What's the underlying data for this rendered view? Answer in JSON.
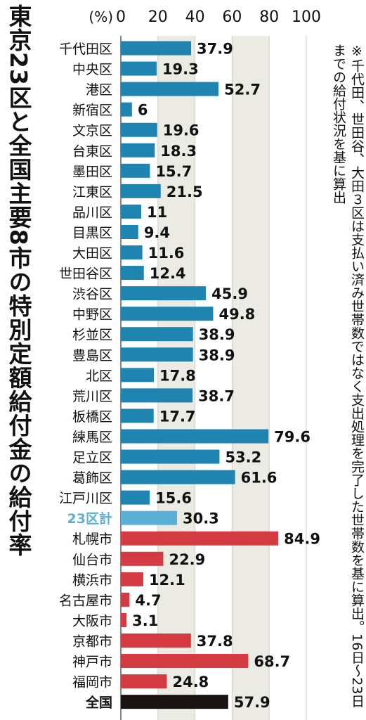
{
  "title": "東京23区と全国主要8市の特別定額給付金の給付率",
  "note": "※千代田、世田谷、大田３区は支払い済み世帯数ではなく支出処理を完了した世帯数を基に算出。16日～23日までの給付状況を基に算出",
  "colors": {
    "ward": "#1f85b0",
    "ward_total": "#5bb0d6",
    "city": "#d33a42",
    "national": "#1a1414",
    "band": "#ebebe4"
  },
  "chart_data": {
    "type": "bar",
    "orientation": "horizontal",
    "unit_label": "(%)",
    "xlim": [
      0,
      100
    ],
    "xticks": [
      "0",
      "20",
      "40",
      "60",
      "80",
      "100"
    ],
    "categories": [
      "千代田区",
      "中央区",
      "港区",
      "新宿区",
      "文京区",
      "台東区",
      "墨田区",
      "江東区",
      "品川区",
      "目黒区",
      "大田区",
      "世田谷区",
      "渋谷区",
      "中野区",
      "杉並区",
      "豊島区",
      "北区",
      "荒川区",
      "板橋区",
      "練馬区",
      "足立区",
      "葛飾区",
      "江戸川区",
      "23区計",
      "札幌市",
      "仙台市",
      "横浜市",
      "名古屋市",
      "大阪市",
      "京都市",
      "神戸市",
      "福岡市",
      "全国"
    ],
    "values": [
      37.9,
      19.3,
      52.7,
      6,
      19.6,
      18.3,
      15.7,
      21.5,
      11,
      9.4,
      11.6,
      12.4,
      45.9,
      49.8,
      38.9,
      38.9,
      17.8,
      38.7,
      17.7,
      79.6,
      53.2,
      61.6,
      15.6,
      30.3,
      84.9,
      22.9,
      12.1,
      4.7,
      3.1,
      37.8,
      68.7,
      24.8,
      57.9
    ],
    "labels": [
      "37.9",
      "19.3",
      "52.7",
      "6",
      "19.6",
      "18.3",
      "15.7",
      "21.5",
      "11",
      "9.4",
      "11.6",
      "12.4",
      "45.9",
      "49.8",
      "38.9",
      "38.9",
      "17.8",
      "38.7",
      "17.7",
      "79.6",
      "53.2",
      "61.6",
      "15.6",
      "30.3",
      "84.9",
      "22.9",
      "12.1",
      "4.7",
      "3.1",
      "37.8",
      "68.7",
      "24.8",
      "57.9"
    ],
    "groups": [
      "ward",
      "ward",
      "ward",
      "ward",
      "ward",
      "ward",
      "ward",
      "ward",
      "ward",
      "ward",
      "ward",
      "ward",
      "ward",
      "ward",
      "ward",
      "ward",
      "ward",
      "ward",
      "ward",
      "ward",
      "ward",
      "ward",
      "ward",
      "ward_total",
      "city",
      "city",
      "city",
      "city",
      "city",
      "city",
      "city",
      "city",
      "national"
    ],
    "grid": true
  }
}
